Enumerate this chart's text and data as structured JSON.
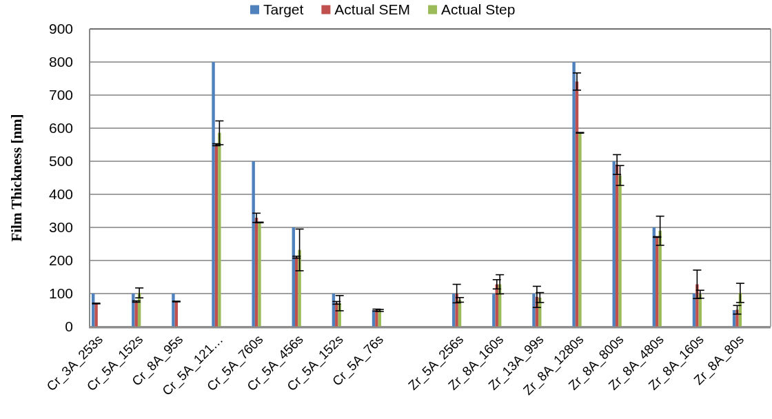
{
  "chart_data": {
    "type": "bar",
    "ylabel": "Film Thickness [nm]",
    "categories": [
      "Cr_3A_253s",
      "Cr_5A_152s",
      "Cr_8A_95s",
      "Cr_5A_121…",
      "Cr_5A_760s",
      "Cr_5A_456s",
      "Cr_5A_152s",
      "Cr_5A_76s",
      null,
      "Zr_5A_256s",
      "Zr_8A_160s",
      "Zr_13A_99s",
      "Zr_8A_1280s",
      "Zr_8A_800s",
      "Zr_8A_480s",
      "Zr_8A_160s",
      "Zr_8A_80s"
    ],
    "series": [
      {
        "name": "Target",
        "color": "#4f81bd",
        "values": [
          100,
          100,
          100,
          800,
          500,
          300,
          100,
          50,
          null,
          100,
          100,
          100,
          800,
          500,
          300,
          100,
          50
        ]
      },
      {
        "name": "Actual SEM",
        "color": "#c0504d",
        "values": [
          70,
          76,
          76,
          550,
          329,
          210,
          72,
          50,
          null,
          100,
          128,
          90,
          741,
          490,
          271,
          128,
          51
        ],
        "errors": [
          1,
          2,
          1,
          3,
          14,
          3,
          4,
          3,
          null,
          28,
          14,
          32,
          26,
          30,
          1,
          43,
          13
        ]
      },
      {
        "name": "Actual Step",
        "color": "#9bbb59",
        "values": [
          null,
          102,
          null,
          586,
          315,
          232,
          71,
          49,
          null,
          81,
          128,
          88,
          586,
          457,
          290,
          98,
          102
        ],
        "errors": [
          null,
          15,
          null,
          36,
          1,
          63,
          23,
          3,
          null,
          7,
          29,
          15,
          1,
          30,
          44,
          12,
          29
        ]
      }
    ],
    "ylim": [
      0,
      900
    ],
    "yticks": [
      0,
      100,
      200,
      300,
      400,
      500,
      600,
      700,
      800,
      900
    ],
    "grid": "y",
    "legend": "top"
  }
}
